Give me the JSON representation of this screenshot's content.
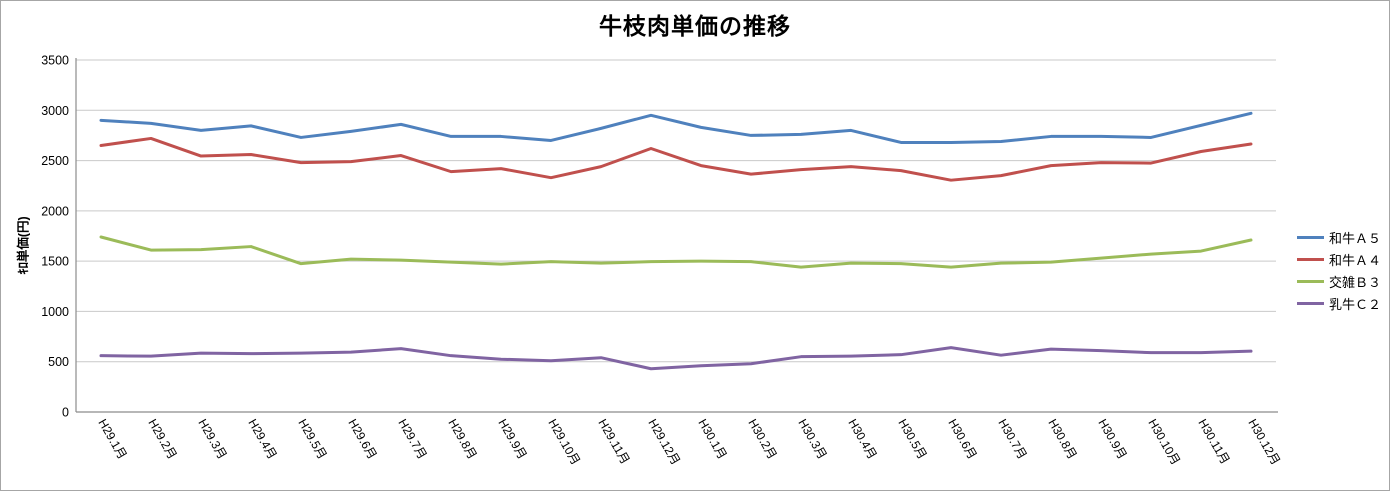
{
  "title": "牛枝肉単価の推移",
  "y_axis_title": "ｷﾛ単価(円)",
  "chart_data": {
    "type": "line",
    "title": "牛枝肉単価の推移",
    "xlabel": "",
    "ylabel": "ｷﾛ単価(円)",
    "ylim": [
      0,
      3500
    ],
    "ytick_step": 500,
    "yticks": [
      0,
      500,
      1000,
      1500,
      2000,
      2500,
      3000,
      3500
    ],
    "grid": "horizontal",
    "legend_position": "right",
    "x_label_rotation_deg": 60,
    "categories": [
      "H29.1月",
      "H29.2月",
      "H29.3月",
      "H29.4月",
      "H29.5月",
      "H29.6月",
      "H29.7月",
      "H29.8月",
      "H29.9月",
      "H29.10月",
      "H29.11月",
      "H29.12月",
      "H30.1月",
      "H30.2月",
      "H30.3月",
      "H30.4月",
      "H30.5月",
      "H30.6月",
      "H30.7月",
      "H30.8月",
      "H30.9月",
      "H30.10月",
      "H30.11月",
      "H30.12月"
    ],
    "series": [
      {
        "name": "和牛Ａ５",
        "color": "#4F81BD",
        "values": [
          2900,
          2870,
          2800,
          2845,
          2730,
          2790,
          2860,
          2740,
          2740,
          2700,
          2820,
          2950,
          2830,
          2750,
          2760,
          2800,
          2680,
          2680,
          2690,
          2740,
          2740,
          2730,
          2850,
          2970
        ]
      },
      {
        "name": "和牛Ａ４",
        "color": "#C0504D",
        "values": [
          2650,
          2720,
          2545,
          2560,
          2480,
          2490,
          2550,
          2390,
          2420,
          2330,
          2440,
          2620,
          2450,
          2365,
          2410,
          2440,
          2400,
          2305,
          2350,
          2450,
          2480,
          2475,
          2590,
          2665
        ]
      },
      {
        "name": "交雑Ｂ３",
        "color": "#9BBB59",
        "values": [
          1740,
          1610,
          1615,
          1645,
          1475,
          1520,
          1510,
          1490,
          1470,
          1495,
          1480,
          1495,
          1500,
          1495,
          1440,
          1480,
          1475,
          1440,
          1480,
          1490,
          1530,
          1570,
          1600,
          1710
        ]
      },
      {
        "name": "乳牛Ｃ２",
        "color": "#8064A2",
        "values": [
          560,
          555,
          585,
          580,
          585,
          595,
          630,
          560,
          525,
          510,
          540,
          430,
          460,
          480,
          550,
          555,
          570,
          640,
          565,
          625,
          610,
          590,
          590,
          605
        ]
      }
    ],
    "axis_color": "#8c8c8c",
    "gridline_color": "#c9c9c9"
  }
}
